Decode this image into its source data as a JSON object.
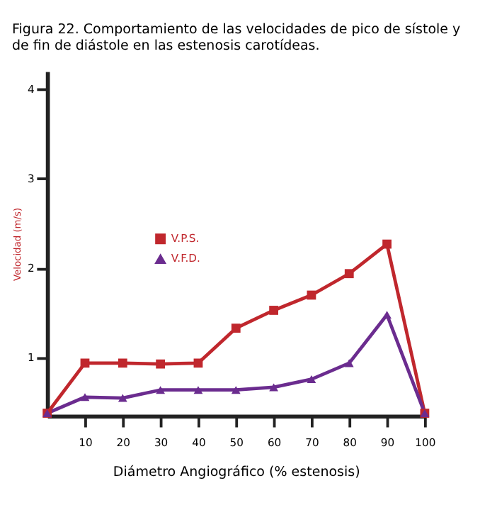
{
  "chart_data": {
    "type": "line",
    "title": [
      "Figura 22. Comportamiento de las velocidades de pico de sístole y",
      "de fin de diástole en las estenosis carotídeas."
    ],
    "xlabel": "Diámetro Angiográfico  (% estenosis)",
    "ylabel": "Velocidad (m/s)",
    "x": [
      0,
      10,
      20,
      30,
      40,
      50,
      60,
      70,
      80,
      90,
      100
    ],
    "series": [
      {
        "name": "V.P.S.",
        "color": "#c0272d",
        "marker": "square",
        "values": [
          0.38,
          0.94,
          0.94,
          0.93,
          0.94,
          1.33,
          1.53,
          1.7,
          1.94,
          2.27,
          0.38
        ]
      },
      {
        "name": "V.F.D.",
        "color": "#6b2c8f",
        "marker": "triangle",
        "values": [
          0.38,
          0.56,
          0.55,
          0.64,
          0.64,
          0.64,
          0.67,
          0.76,
          0.94,
          1.48,
          0.38
        ]
      }
    ],
    "xlim": [
      0,
      100
    ],
    "xticks": [
      10,
      20,
      30,
      40,
      50,
      60,
      70,
      80,
      90,
      100
    ],
    "ylim": [
      0.35,
      4.2
    ],
    "yticks": [
      1,
      2,
      3,
      4
    ],
    "grid": false,
    "legend": "left"
  }
}
